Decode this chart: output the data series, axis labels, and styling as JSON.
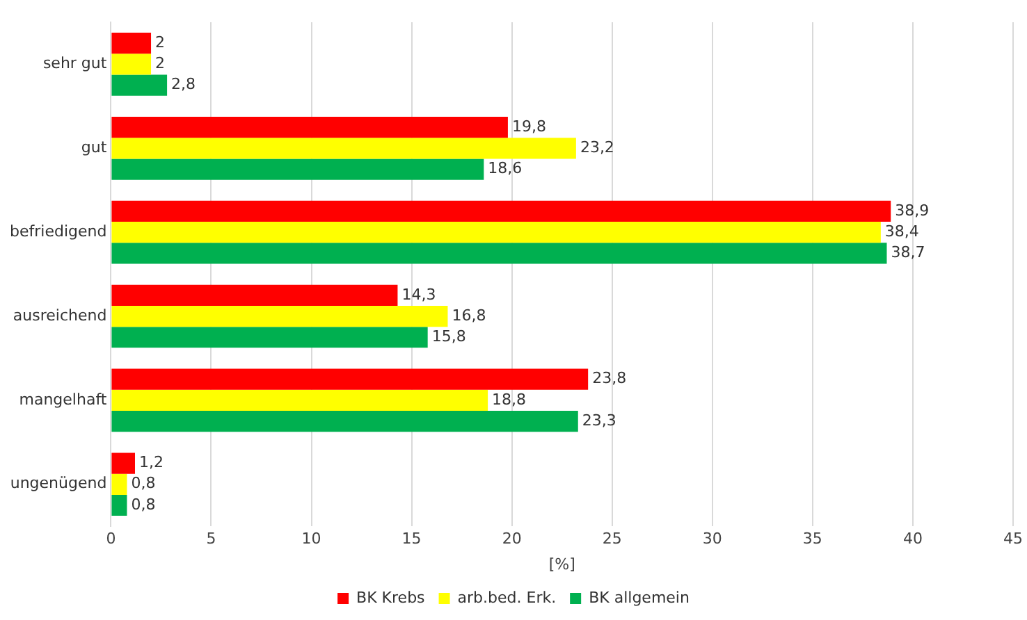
{
  "chart_data": {
    "type": "bar",
    "orientation": "horizontal",
    "xlabel": "[%]",
    "categories": [
      "sehr gut",
      "gut",
      "befriedigend",
      "ausreichend",
      "mangelhaft",
      "ungenügend"
    ],
    "series": [
      {
        "name": "BK Krebs",
        "color": "#ff0000",
        "values": [
          2,
          19.8,
          38.9,
          14.3,
          23.8,
          1.2
        ],
        "value_labels": [
          "2",
          "19,8",
          "38,9",
          "14,3",
          "23,8",
          "1,2"
        ]
      },
      {
        "name": "arb.bed. Erk.",
        "color": "#ffff00",
        "values": [
          2,
          23.2,
          38.4,
          16.8,
          18.8,
          0.8
        ],
        "value_labels": [
          "2",
          "23,2",
          "38,4",
          "16,8",
          "18,8",
          "0,8"
        ]
      },
      {
        "name": "BK allgemein",
        "color": "#00b050",
        "values": [
          2.8,
          18.6,
          38.7,
          15.8,
          23.3,
          0.8
        ],
        "value_labels": [
          "2,8",
          "18,6",
          "38,7",
          "15,8",
          "23,3",
          "0,8"
        ]
      }
    ],
    "xlim": [
      0,
      45
    ],
    "xticks": [
      0,
      5,
      10,
      15,
      20,
      25,
      30,
      35,
      40,
      45
    ],
    "grid": "x",
    "legend": "bottom"
  }
}
